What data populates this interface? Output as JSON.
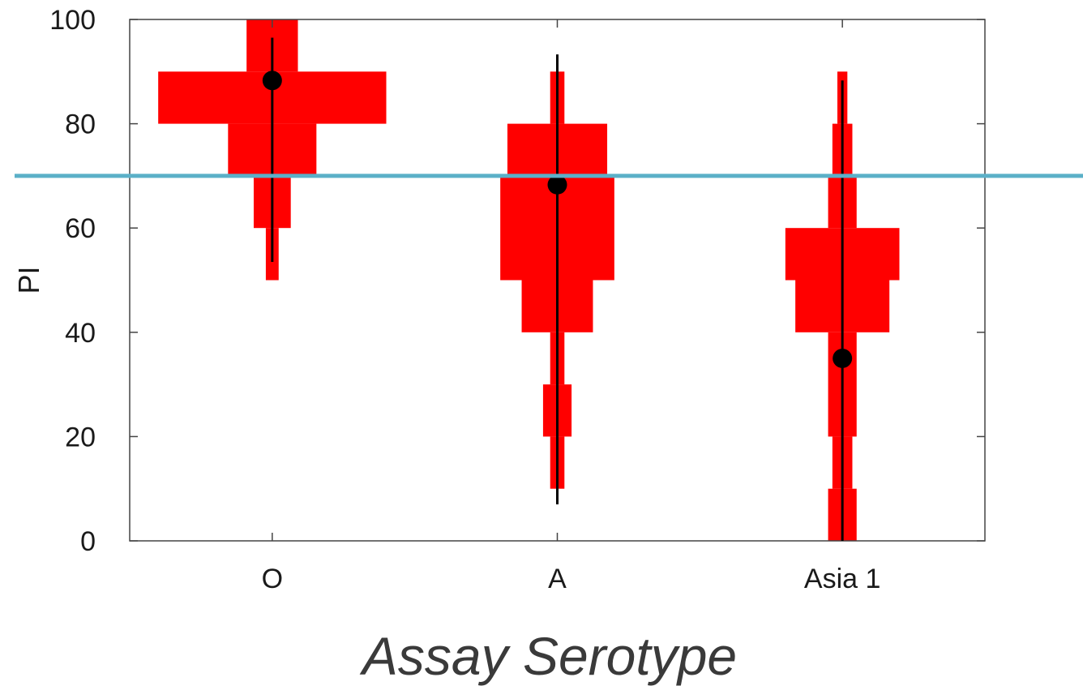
{
  "chart_data": {
    "type": "violin",
    "title": "",
    "xlabel": "Assay Serotype",
    "ylabel": "PI",
    "ylim": [
      0,
      100
    ],
    "yticks": [
      "0",
      "20",
      "40",
      "60",
      "80",
      "100"
    ],
    "categories": [
      "O",
      "A",
      "Asia 1"
    ],
    "bin_width": 10,
    "series": [
      {
        "category": "O",
        "bins": [
          {
            "range": [
              50,
              60
            ],
            "half_width": 0.045
          },
          {
            "range": [
              60,
              70
            ],
            "half_width": 0.13
          },
          {
            "range": [
              70,
              80
            ],
            "half_width": 0.31
          },
          {
            "range": [
              80,
              90
            ],
            "half_width": 0.8
          },
          {
            "range": [
              90,
              100
            ],
            "half_width": 0.18
          }
        ],
        "mean": 88.3,
        "range_bar": [
          53.5,
          96.5
        ]
      },
      {
        "category": "A",
        "bins": [
          {
            "range": [
              10,
              20
            ],
            "half_width": 0.05
          },
          {
            "range": [
              20,
              30
            ],
            "half_width": 0.1
          },
          {
            "range": [
              30,
              40
            ],
            "half_width": 0.05
          },
          {
            "range": [
              40,
              50
            ],
            "half_width": 0.25
          },
          {
            "range": [
              50,
              70
            ],
            "half_width": 0.4
          },
          {
            "range": [
              70,
              80
            ],
            "half_width": 0.35
          },
          {
            "range": [
              80,
              90
            ],
            "half_width": 0.05
          }
        ],
        "mean": 68.3,
        "range_bar": [
          7,
          93.3
        ]
      },
      {
        "category": "Asia 1",
        "bins": [
          {
            "range": [
              0,
              10
            ],
            "half_width": 0.1
          },
          {
            "range": [
              10,
              20
            ],
            "half_width": 0.07
          },
          {
            "range": [
              20,
              40
            ],
            "half_width": 0.1
          },
          {
            "range": [
              40,
              50
            ],
            "half_width": 0.33
          },
          {
            "range": [
              50,
              60
            ],
            "half_width": 0.4
          },
          {
            "range": [
              60,
              70
            ],
            "half_width": 0.1
          },
          {
            "range": [
              70,
              80
            ],
            "half_width": 0.07
          },
          {
            "range": [
              80,
              90
            ],
            "half_width": 0.035
          }
        ],
        "mean": 35,
        "range_bar": [
          0,
          88.3
        ]
      }
    ],
    "threshold": 70,
    "colors": {
      "violin": "#ff0000",
      "mean": "#000000",
      "range_bar": "#000000",
      "threshold": "#5bb0c8",
      "axis": "#444444"
    },
    "grid": false,
    "legend": "none"
  }
}
